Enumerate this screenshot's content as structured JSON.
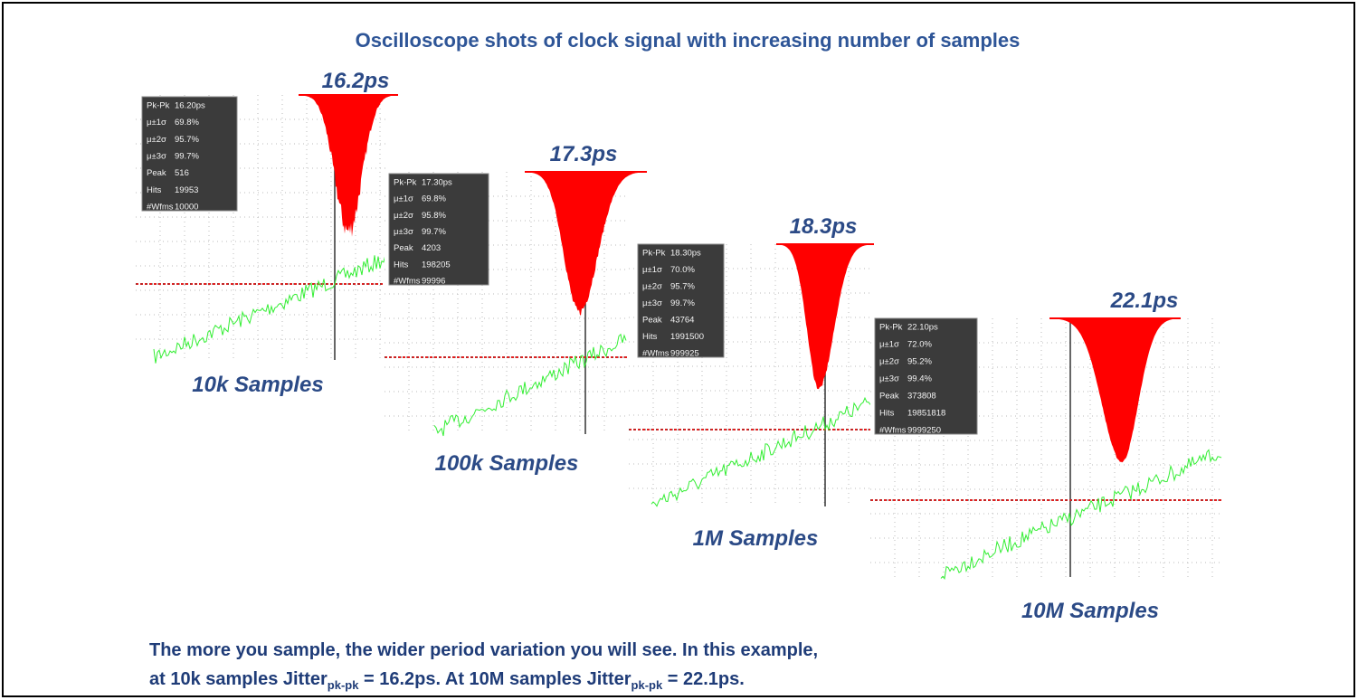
{
  "title": "Oscilloscope shots of clock signal with increasing number of samples",
  "panels": [
    {
      "jitter_label": "16.2ps",
      "samples_label": "10k Samples",
      "stats": [
        [
          "Pk-Pk",
          "16.20ps"
        ],
        [
          "μ±1σ",
          "69.8%"
        ],
        [
          "μ±2σ",
          "95.7%"
        ],
        [
          "μ±3σ",
          "99.7%"
        ],
        [
          "Peak",
          "516"
        ],
        [
          "Hits",
          "19953"
        ],
        [
          "#Wfms",
          "10000"
        ]
      ]
    },
    {
      "jitter_label": "17.3ps",
      "samples_label": "100k Samples",
      "stats": [
        [
          "Pk-Pk",
          "17.30ps"
        ],
        [
          "μ±1σ",
          "69.8%"
        ],
        [
          "μ±2σ",
          "95.8%"
        ],
        [
          "μ±3σ",
          "99.7%"
        ],
        [
          "Peak",
          "4203"
        ],
        [
          "Hits",
          "198205"
        ],
        [
          "#Wfms",
          "99996"
        ]
      ]
    },
    {
      "jitter_label": "18.3ps",
      "samples_label": "1M Samples",
      "stats": [
        [
          "Pk-Pk",
          "18.30ps"
        ],
        [
          "μ±1σ",
          "70.0%"
        ],
        [
          "μ±2σ",
          "95.7%"
        ],
        [
          "μ±3σ",
          "99.7%"
        ],
        [
          "Peak",
          "43764"
        ],
        [
          "Hits",
          "1991500"
        ],
        [
          "#Wfms",
          "999925"
        ]
      ]
    },
    {
      "jitter_label": "22.1ps",
      "samples_label": "10M Samples",
      "stats": [
        [
          "Pk-Pk",
          "22.10ps"
        ],
        [
          "μ±1σ",
          "72.0%"
        ],
        [
          "μ±2σ",
          "95.2%"
        ],
        [
          "μ±3σ",
          "99.4%"
        ],
        [
          "Peak",
          "373808"
        ],
        [
          "Hits",
          "19851818"
        ],
        [
          "#Wfms",
          "9999250"
        ]
      ]
    }
  ],
  "caption": {
    "line1": "The more you sample, the wider period variation you will see. In this example,",
    "line2": [
      "at 10k samples Jitter",
      "pk-pk",
      " = 16.2ps. At 10M samples Jitter",
      "pk-pk",
      " = 22.1ps."
    ]
  }
}
